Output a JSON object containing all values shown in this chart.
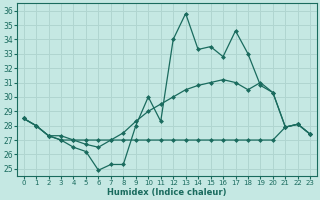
{
  "xlabel": "Humidex (Indice chaleur)",
  "xlim": [
    -0.5,
    23.5
  ],
  "ylim": [
    24.5,
    36.5
  ],
  "yticks": [
    25,
    26,
    27,
    28,
    29,
    30,
    31,
    32,
    33,
    34,
    35,
    36
  ],
  "xticks": [
    0,
    1,
    2,
    3,
    4,
    5,
    6,
    7,
    8,
    9,
    10,
    11,
    12,
    13,
    14,
    15,
    16,
    17,
    18,
    19,
    20,
    21,
    22,
    23
  ],
  "bg_color": "#c5e8e3",
  "grid_color": "#b0d5d0",
  "line_color": "#1a6b5e",
  "line1": [
    28.5,
    28.0,
    27.3,
    27.0,
    26.5,
    26.2,
    24.9,
    25.3,
    25.3,
    28.0,
    30.0,
    28.3,
    34.0,
    35.8,
    33.3,
    33.5,
    32.8,
    34.6,
    33.0,
    30.8,
    30.3,
    27.9,
    28.1,
    27.4
  ],
  "line2": [
    28.5,
    28.0,
    27.3,
    27.3,
    27.0,
    26.7,
    26.5,
    27.0,
    27.5,
    28.3,
    29.0,
    29.5,
    30.0,
    30.5,
    30.8,
    31.0,
    31.2,
    31.0,
    30.5,
    31.0,
    30.3,
    27.9,
    28.1,
    27.4
  ],
  "line3": [
    28.5,
    28.0,
    27.3,
    27.0,
    27.0,
    27.0,
    27.0,
    27.0,
    27.0,
    27.0,
    27.0,
    27.0,
    27.0,
    27.0,
    27.0,
    27.0,
    27.0,
    27.0,
    27.0,
    27.0,
    27.0,
    27.9,
    28.1,
    27.4
  ]
}
